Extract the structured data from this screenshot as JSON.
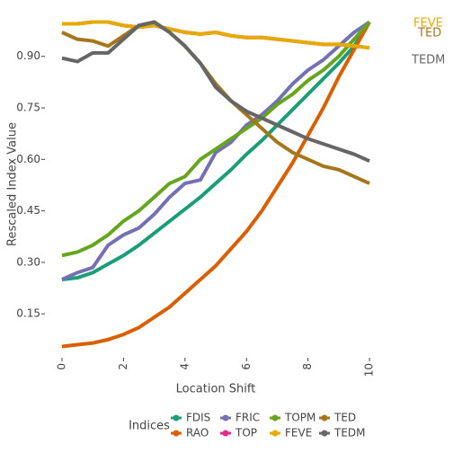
{
  "chart_data": {
    "type": "line",
    "y_label": "Rescaled Index Value",
    "x_label": "Location Shift",
    "legend_title": "Indices",
    "x": [
      0,
      0.5,
      1,
      1.5,
      2,
      2.5,
      3,
      3.5,
      4,
      4.5,
      5,
      5.5,
      6,
      6.5,
      7,
      7.5,
      8,
      8.5,
      9,
      9.5,
      10
    ],
    "xlim": [
      -0.35,
      10.26
    ],
    "xticks": [
      0,
      2,
      4,
      6,
      8,
      10
    ],
    "ylim": [
      0.03,
      1.025
    ],
    "yticks": [
      0.15,
      {
        "value": 0.3,
        "label": "0.30"
      },
      0.45,
      {
        "value": 0.6,
        "label": "0.60"
      },
      0.75,
      {
        "value": 0.9,
        "label": "0.90"
      }
    ],
    "grid": false,
    "series": [
      {
        "name": "FDIS",
        "color": "#1b9e77",
        "values": [
          0.25,
          0.255,
          0.27,
          0.295,
          0.32,
          0.35,
          0.385,
          0.42,
          0.455,
          0.49,
          0.53,
          0.57,
          0.615,
          0.655,
          0.7,
          0.745,
          0.79,
          0.835,
          0.88,
          0.93,
          1.0
        ]
      },
      {
        "name": "RAO",
        "color": "#d95f02",
        "values": [
          0.055,
          0.06,
          0.065,
          0.075,
          0.09,
          0.11,
          0.14,
          0.17,
          0.21,
          0.25,
          0.29,
          0.34,
          0.39,
          0.45,
          0.52,
          0.59,
          0.67,
          0.75,
          0.84,
          0.92,
          1.0
        ]
      },
      {
        "name": "FRIC",
        "color": "#7570b3",
        "values": [
          0.25,
          0.27,
          0.285,
          0.35,
          0.38,
          0.4,
          0.44,
          0.49,
          0.53,
          0.54,
          0.62,
          0.65,
          0.7,
          0.73,
          0.77,
          0.82,
          0.86,
          0.89,
          0.93,
          0.97,
          1.0
        ]
      },
      {
        "name": "TOP",
        "color": "#e7298a",
        "values": [
          0.995,
          0.995,
          1.0,
          1.0,
          0.99,
          0.985,
          0.99,
          0.98,
          0.97,
          0.965,
          0.97,
          0.96,
          0.955,
          0.955,
          0.95,
          0.945,
          0.94,
          0.935,
          0.935,
          0.93,
          0.925
        ]
      },
      {
        "name": "TOPM",
        "color": "#66a61e",
        "values": [
          0.32,
          0.33,
          0.35,
          0.38,
          0.42,
          0.45,
          0.49,
          0.53,
          0.55,
          0.6,
          0.63,
          0.66,
          0.69,
          0.72,
          0.76,
          0.79,
          0.83,
          0.86,
          0.9,
          0.95,
          1.0
        ]
      },
      {
        "name": "FEVE",
        "color": "#e6ab02",
        "values": [
          0.995,
          0.995,
          1.0,
          1.0,
          0.99,
          0.985,
          0.99,
          0.98,
          0.97,
          0.965,
          0.97,
          0.96,
          0.955,
          0.955,
          0.95,
          0.945,
          0.94,
          0.935,
          0.935,
          0.93,
          0.925
        ]
      },
      {
        "name": "TED",
        "color": "#a6761d",
        "values": [
          0.97,
          0.95,
          0.945,
          0.93,
          0.96,
          0.99,
          1.0,
          0.97,
          0.93,
          0.88,
          0.82,
          0.77,
          0.73,
          0.69,
          0.65,
          0.62,
          0.6,
          0.58,
          0.57,
          0.55,
          0.53
        ]
      },
      {
        "name": "TEDM",
        "color": "#666666",
        "values": [
          0.895,
          0.885,
          0.91,
          0.91,
          0.95,
          0.99,
          1.0,
          0.97,
          0.93,
          0.88,
          0.81,
          0.77,
          0.74,
          0.72,
          0.7,
          0.68,
          0.66,
          0.645,
          0.63,
          0.615,
          0.595
        ]
      }
    ],
    "annotations": [
      {
        "text": "FEVE",
        "color": "#e6ab02"
      },
      {
        "text": "TED",
        "color": "#a6761d"
      },
      {
        "text": "TEDM",
        "color": "#666666"
      }
    ]
  }
}
